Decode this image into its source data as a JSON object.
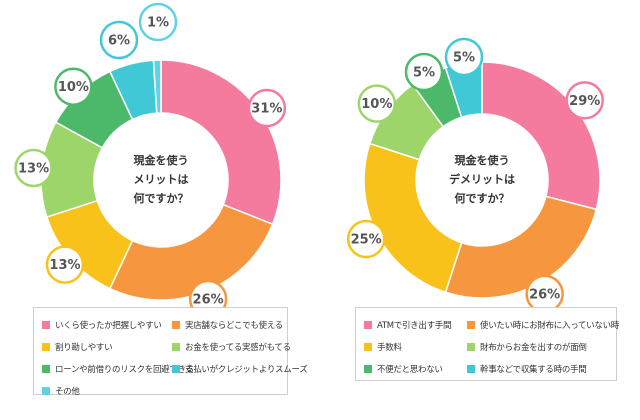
{
  "colors": {
    "pink": "#F47A9E",
    "orange": "#F6963E",
    "yellow": "#F8C21B",
    "lightgreen": "#9ED56A",
    "green": "#4CB96A",
    "teal": "#41C8D6",
    "cyan": "#5FD3E6"
  },
  "chart_data": [
    {
      "type": "pie",
      "donut": true,
      "center_text": [
        "現金を使う",
        "メリットは",
        "何ですか？"
      ],
      "slices": [
        {
          "label": "いくら使ったか把握しやすい",
          "value": 31,
          "display": "31%",
          "color": "#F47A9E"
        },
        {
          "label": "実店舗ならどこでも使える",
          "value": 26,
          "display": "26%",
          "color": "#F6963E"
        },
        {
          "label": "割り勘しやすい",
          "value": 13,
          "display": "13%",
          "color": "#F8C21B"
        },
        {
          "label": "お金を使ってる実感がもてる",
          "value": 13,
          "display": "13%",
          "color": "#9ED56A"
        },
        {
          "label": "ローンや前借りのリスクを回避できる",
          "value": 10,
          "display": "10%",
          "color": "#4CB96A"
        },
        {
          "label": "支払いがクレジットよりスムーズ",
          "value": 6,
          "display": "6%",
          "color": "#41C8D6"
        },
        {
          "label": "その他",
          "value": 1,
          "display": "1%",
          "color": "#5FD3E6"
        }
      ]
    },
    {
      "type": "pie",
      "donut": true,
      "center_text": [
        "現金を使う",
        "デメリットは",
        "何ですか？"
      ],
      "slices": [
        {
          "label": "ATMで引き出す手間",
          "value": 29,
          "display": "29%",
          "color": "#F47A9E"
        },
        {
          "label": "使いたい時にお財布に入っていない時",
          "value": 26,
          "display": "26%",
          "color": "#F6963E"
        },
        {
          "label": "手数料",
          "value": 25,
          "display": "25%",
          "color": "#F8C21B"
        },
        {
          "label": "財布からお金を出すのが面倒",
          "value": 10,
          "display": "10%",
          "color": "#9ED56A"
        },
        {
          "label": "不便だと思わない",
          "value": 5,
          "display": "5%",
          "color": "#4CB96A"
        },
        {
          "label": "幹事などで収集する時の手間",
          "value": 5,
          "display": "5%",
          "color": "#41C8D6"
        }
      ]
    }
  ]
}
